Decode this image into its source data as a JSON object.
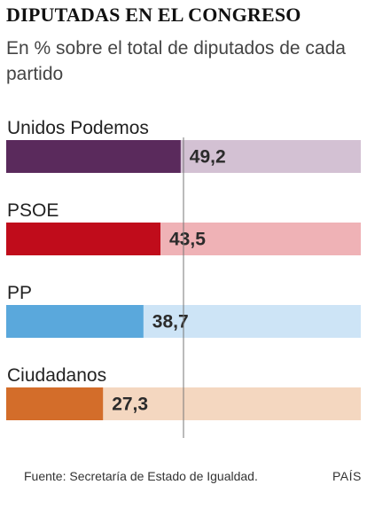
{
  "title": "DIPUTADAS EN EL CONGRESO",
  "subtitle": "En % sobre el total de diputados de cada partido",
  "source": "Fuente: Secretaría de Estado de Igualdad.",
  "brand": "PAÍS",
  "chart_data": {
    "type": "bar",
    "orientation": "horizontal",
    "categories": [
      "Unidos Podemos",
      "PSOE",
      "PP",
      "Ciudadanos"
    ],
    "values": [
      49.2,
      43.5,
      38.7,
      27.3
    ],
    "value_labels": [
      "49,2",
      "43,5",
      "38,7",
      "27,3"
    ],
    "xlim": [
      0,
      100
    ],
    "reference_line": 50,
    "colors": [
      "#5a2a5c",
      "#c00c1b",
      "#5aa8dc",
      "#d36d2a"
    ],
    "track_colors": [
      "#d3c1d3",
      "#efb2b6",
      "#cde4f6",
      "#f4d7c0"
    ],
    "grid": false,
    "legend": "none"
  }
}
